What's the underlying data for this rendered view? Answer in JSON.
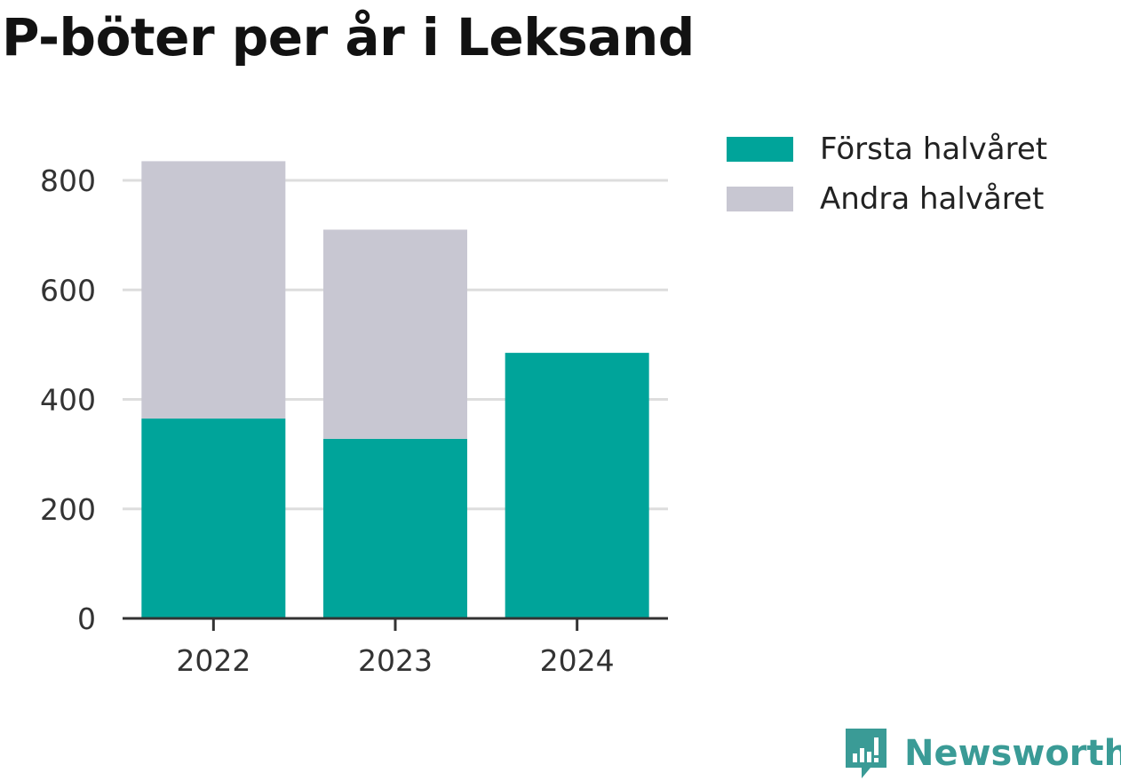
{
  "chart_data": {
    "type": "bar",
    "stacked": true,
    "title": "P-böter per år i Leksand",
    "categories": [
      "2022",
      "2023",
      "2024"
    ],
    "series": [
      {
        "name": "Första halvåret",
        "values": [
          365,
          328,
          485
        ],
        "color": "#00a49a"
      },
      {
        "name": "Andra halvåret",
        "values": [
          470,
          382,
          0
        ],
        "color": "#c8c7d2"
      }
    ],
    "ylim": [
      0,
      850
    ],
    "yticks": [
      0,
      200,
      400,
      600,
      800
    ],
    "grid": true,
    "legend_position": "top-right"
  },
  "brand": {
    "name": "Newsworthy",
    "icon": "newsworthy-logo-icon",
    "color": "#3a9b96"
  }
}
